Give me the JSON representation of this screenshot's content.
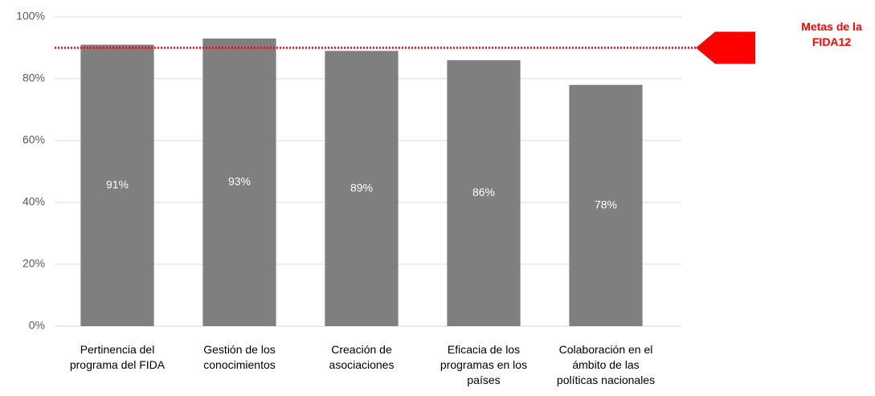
{
  "chart_data": {
    "type": "bar",
    "categories": [
      "Pertinencia del programa del FIDA",
      "Gestión de los conocimientos",
      "Creación de asociaciones",
      "Eficacia de los programas en los países",
      "Colaboración en el ámbito de las políticas nacionales"
    ],
    "values": [
      91,
      93,
      89,
      86,
      78
    ],
    "value_labels": [
      "91%",
      "93%",
      "89%",
      "86%",
      "78%"
    ],
    "color": "#7f7f7f",
    "ylim": [
      0,
      100
    ],
    "yticks": [
      {
        "value": 0,
        "label": "0%"
      },
      {
        "value": 20,
        "label": "20%"
      },
      {
        "value": 40,
        "label": "40%"
      },
      {
        "value": 60,
        "label": "60%"
      },
      {
        "value": 80,
        "label": "80%"
      },
      {
        "value": 100,
        "label": "100%"
      }
    ],
    "grid": true,
    "target": 90,
    "target_label": "Metas de la FIDA12",
    "target_color": "#ff0000"
  }
}
